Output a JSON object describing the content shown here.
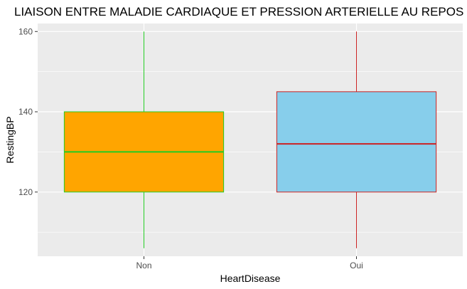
{
  "chart_data": {
    "type": "boxplot",
    "title": "LIAISON ENTRE MALADIE CARDIAQUE ET PRESSION ARTERIELLE AU REPOS",
    "xlabel": "HeartDisease",
    "ylabel": "RestingBP",
    "categories": [
      "Non",
      "Oui"
    ],
    "ylim": [
      104,
      162
    ],
    "yticks": [
      120,
      140,
      160
    ],
    "yticks_labels": [
      "120",
      "140",
      "160"
    ],
    "grid": true,
    "legend": "none",
    "boxes": [
      {
        "category": "Non",
        "whisker_low": 106,
        "q1": 120,
        "median": 130,
        "q3": 140,
        "whisker_high": 160,
        "fill": "#FFA500",
        "stroke": "#22CC22"
      },
      {
        "category": "Oui",
        "whisker_low": 106,
        "q1": 120,
        "median": 132,
        "q3": 145,
        "whisker_high": 160,
        "fill": "#87CEEB",
        "stroke": "#CC2222"
      }
    ],
    "panel_background": "#EBEBEB",
    "grid_color": "#FFFFFF"
  }
}
